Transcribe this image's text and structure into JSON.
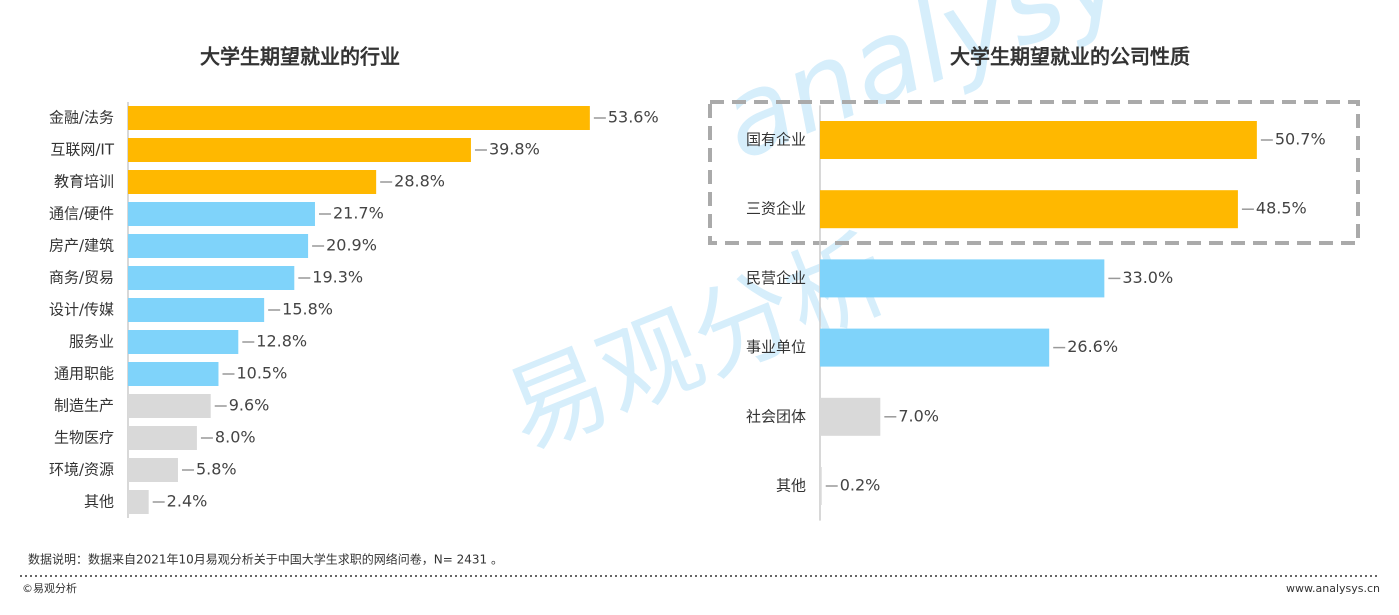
{
  "chart_data": [
    {
      "type": "bar",
      "title": "大学生期望就业的行业",
      "categories": [
        "金融/法务",
        "互联网/IT",
        "教育培训",
        "通信/硬件",
        "房产/建筑",
        "商务/贸易",
        "设计/传媒",
        "服务业",
        "通用职能",
        "制造生产",
        "生物医疗",
        "环境/资源",
        "其他"
      ],
      "values": [
        53.6,
        39.8,
        28.8,
        21.7,
        20.9,
        19.3,
        15.8,
        12.8,
        10.5,
        9.6,
        8.0,
        5.8,
        2.4
      ],
      "value_labels": [
        "53.6%",
        "39.8%",
        "28.8%",
        "21.7%",
        "20.9%",
        "19.3%",
        "15.8%",
        "12.8%",
        "10.5%",
        "9.6%",
        "8.0%",
        "5.8%",
        "2.4%"
      ],
      "colors": [
        "#FFB800",
        "#FFB800",
        "#FFB800",
        "#7FD3FA",
        "#7FD3FA",
        "#7FD3FA",
        "#7FD3FA",
        "#7FD3FA",
        "#7FD3FA",
        "#D9D9D9",
        "#D9D9D9",
        "#D9D9D9",
        "#D9D9D9"
      ],
      "xlim": [
        0,
        60
      ]
    },
    {
      "type": "bar",
      "title": "大学生期望就业的公司性质",
      "categories": [
        "国有企业",
        "三资企业",
        "民营企业",
        "事业单位",
        "社会团体",
        "其他"
      ],
      "values": [
        50.7,
        48.5,
        33.0,
        26.6,
        7.0,
        0.2
      ],
      "value_labels": [
        "50.7%",
        "48.5%",
        "33.0%",
        "26.6%",
        "7.0%",
        "0.2%"
      ],
      "colors": [
        "#FFB800",
        "#FFB800",
        "#7FD3FA",
        "#7FD3FA",
        "#D9D9D9",
        "#D9D9D9"
      ],
      "xlim": [
        0,
        60
      ]
    }
  ],
  "note": "数据说明：数据来自2021年10月易观分析关于中国大学生求职的网络问卷，N= 2431 。",
  "footer_left": "©易观分析",
  "footer_right": "www.analysys.cn",
  "watermark": [
    "analysys",
    "易观分析"
  ]
}
